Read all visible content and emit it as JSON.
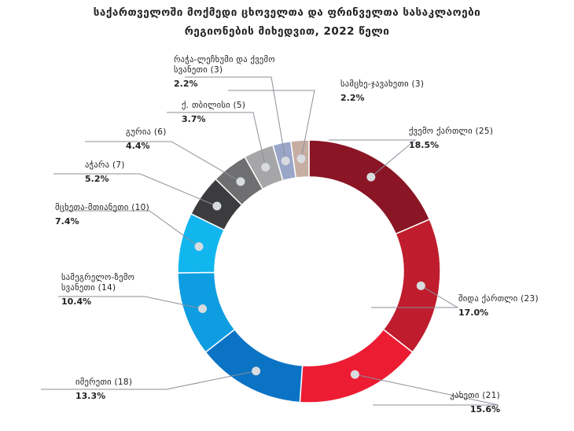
{
  "chart_data": {
    "type": "pie",
    "title": [
      "საქართველოში მოქმედი ცხოველთა და ფრინველთა სასაკლაოები",
      "რეგიონების მიხედვით, 2022 წელი"
    ],
    "slices": [
      {
        "label": "ქვემო ქართლი (25)",
        "count": 25,
        "percent": "18.5%",
        "color": "#8a1524"
      },
      {
        "label": "შიდა ქართლი (23)",
        "count": 23,
        "percent": "17.0%",
        "color": "#bf1d2d"
      },
      {
        "label": "კახეთი (21)",
        "count": 21,
        "percent": "15.6%",
        "color": "#ec1c33"
      },
      {
        "label": "იმერეთი (18)",
        "count": 18,
        "percent": "13.3%",
        "color": "#0b73c4"
      },
      {
        "label": "სამეგრელო-ზემო სვანეთი (14)",
        "count": 14,
        "percent": "10.4%",
        "color": "#0e9de0"
      },
      {
        "label": "მცხეთა-მთიანეთი (10)",
        "count": 10,
        "percent": "7.4%",
        "color": "#12b6ef"
      },
      {
        "label": "აჭარა (7)",
        "count": 7,
        "percent": "5.2%",
        "color": "#3c3c3e"
      },
      {
        "label": "გურია (6)",
        "count": 6,
        "percent": "4.4%",
        "color": "#6f6f71"
      },
      {
        "label": "ქ. თბილისი (5)",
        "count": 5,
        "percent": "3.7%",
        "color": "#a6a6a8"
      },
      {
        "label": "რაჭა-ლეჩხუმი და ქვემო სვანეთი (3)",
        "count": 3,
        "percent": "2.2%",
        "color": "#9aa6c8"
      },
      {
        "label": "სამცხე-ჯავახეთი (3)",
        "count": 3,
        "percent": "2.2%",
        "color": "#c6aea3"
      }
    ]
  }
}
